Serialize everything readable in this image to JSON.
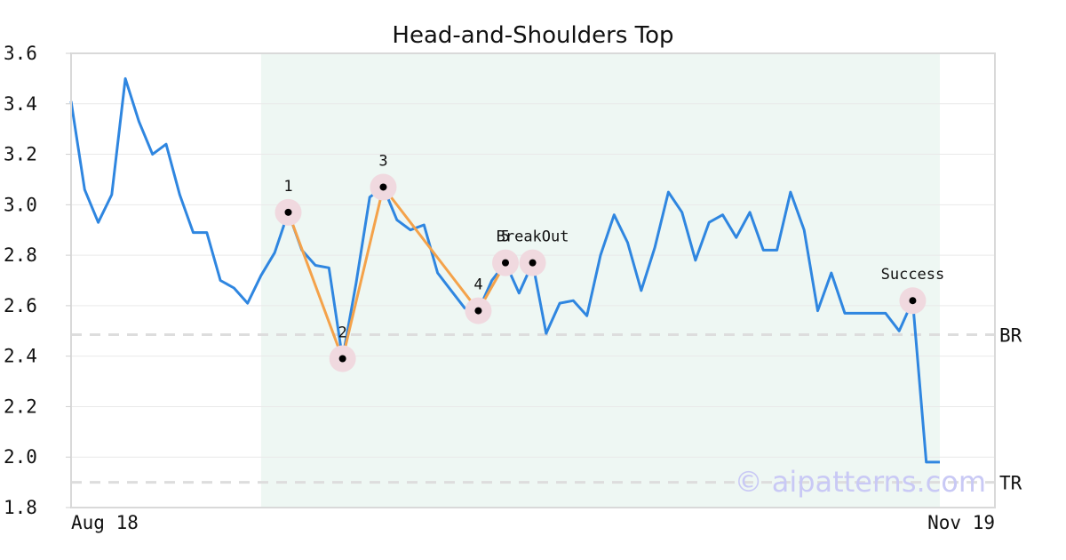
{
  "colors": {
    "price_line": "#2f86e0",
    "pattern_line": "#f4a24a",
    "highlight_band": "#eef7f3",
    "guide_line": "#dddddd",
    "marker_halo": "#f0d9df",
    "marker_dot": "#000000",
    "watermark": "#c9c9f5"
  },
  "chart_data": {
    "type": "line",
    "title": "Head-and-Shoulders Top",
    "xlabel": "",
    "ylabel": "",
    "x_tick_labels": [
      "Aug 18",
      "Nov 19"
    ],
    "y_ticks": [
      1.8,
      2.0,
      2.2,
      2.4,
      2.6,
      2.8,
      3.0,
      3.2,
      3.4,
      3.6
    ],
    "ylim": [
      1.8,
      3.6
    ],
    "grid": true,
    "series": [
      {
        "values": [
          3.41,
          3.06,
          2.93,
          3.04,
          3.5,
          3.33,
          3.2,
          3.24,
          3.04,
          2.89,
          2.89,
          2.7,
          2.67,
          2.61,
          2.72,
          2.81,
          2.97,
          2.82,
          2.76,
          2.75,
          2.39,
          2.69,
          3.03,
          3.07,
          2.94,
          2.9,
          2.92,
          2.73,
          2.66,
          2.59,
          2.58,
          2.7,
          2.77,
          2.65,
          2.77,
          2.49,
          2.61,
          2.62,
          2.56,
          2.8,
          2.96,
          2.85,
          2.66,
          2.83,
          3.05,
          2.97,
          2.78,
          2.93,
          2.96,
          2.87,
          2.97,
          2.82,
          2.82,
          3.05,
          2.9,
          2.58,
          2.73,
          2.57,
          2.57,
          2.57,
          2.57,
          2.5,
          2.62,
          1.98,
          1.98
        ]
      }
    ],
    "highlight_region": {
      "from_index": 14,
      "to_index": 64
    },
    "pattern_points": [
      {
        "label": "1",
        "index": 16,
        "value": 2.97
      },
      {
        "label": "2",
        "index": 20,
        "value": 2.39
      },
      {
        "label": "3",
        "index": 23,
        "value": 3.07
      },
      {
        "label": "4",
        "index": 30,
        "value": 2.58
      },
      {
        "label": "5",
        "index": 32,
        "value": 2.77
      }
    ],
    "extra_markers": [
      {
        "label": "BreakOut",
        "index": 34,
        "value": 2.77
      },
      {
        "label": "Success",
        "index": 62,
        "value": 2.62
      }
    ],
    "reference_lines": [
      {
        "label": "BR",
        "value": 2.485
      },
      {
        "label": "TR",
        "value": 1.9
      }
    ],
    "watermark": "© aipatterns.com"
  }
}
